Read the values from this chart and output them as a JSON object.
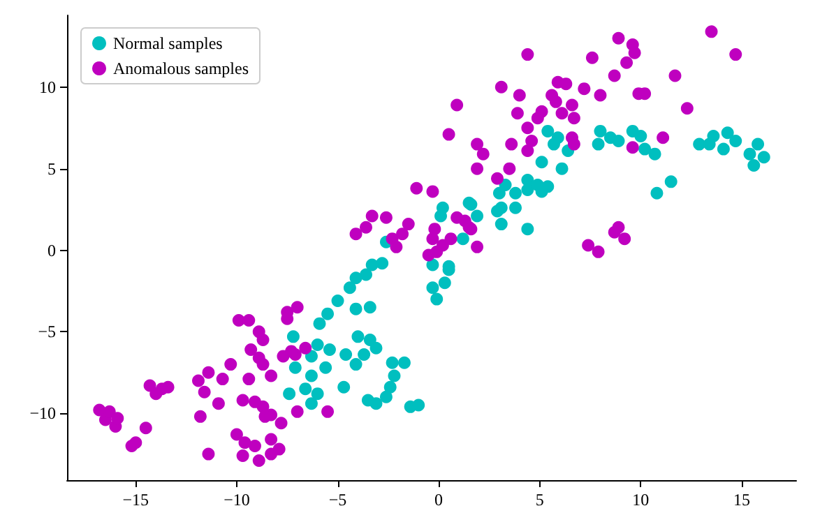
{
  "chart_data": {
    "type": "scatter",
    "legend": "top left",
    "marker": "circle",
    "grid": false,
    "xlim": [
      -18.4,
      17.7
    ],
    "ylim": [
      -14.1,
      14.4
    ],
    "xticks": [
      -15,
      -10,
      -5,
      0,
      5,
      10,
      15
    ],
    "yticks": [
      -10,
      -5,
      0,
      5,
      10
    ],
    "series": [
      {
        "name": "Normal samples",
        "color": "#00bfbf",
        "x": [
          4.4,
          0.2,
          0.1,
          1.5,
          1.9,
          1.2,
          2.9,
          3.1,
          3.8,
          4.4,
          -0.3,
          0.5,
          -0.3,
          -0.1,
          0.3,
          -2.6,
          -2.8,
          -3.3,
          -3.6,
          -4.1,
          -4.4,
          -5.0,
          -5.5,
          -5.9,
          -4.1,
          -3.4,
          -4.0,
          -3.4,
          -3.1,
          -3.7,
          -4.1,
          -4.6,
          -5.4,
          -6.0,
          -6.3,
          -5.6,
          -6.3,
          -6.6,
          -6.0,
          -4.7,
          -7.1,
          -7.2,
          -2.3,
          -1.7,
          -2.2,
          -2.4,
          -2.6,
          -3.5,
          -3.1,
          -1.4,
          -1.0,
          -6.3,
          -7.4,
          1.6,
          3.0,
          3.3,
          3.1,
          3.8,
          4.4,
          4.9,
          5.4,
          5.1,
          5.1,
          6.1,
          5.4,
          5.9,
          6.4,
          5.7,
          8.0,
          7.9,
          8.5,
          8.9,
          9.6,
          10.0,
          10.2,
          10.7,
          10.8,
          11.5,
          12.9,
          13.6,
          14.3,
          14.7,
          14.1,
          15.4,
          15.8,
          15.6,
          16.1,
          13.4,
          0.5
        ],
        "values": [
          1.3,
          2.6,
          2.1,
          2.9,
          2.1,
          0.7,
          2.4,
          1.6,
          3.5,
          3.7,
          -0.9,
          -1.2,
          -2.3,
          -3.0,
          -2.0,
          0.5,
          -0.8,
          -0.9,
          -1.5,
          -1.7,
          -2.3,
          -3.1,
          -3.9,
          -4.5,
          -3.6,
          -3.5,
          -5.3,
          -5.5,
          -6.0,
          -6.4,
          -7.0,
          -6.4,
          -6.1,
          -5.8,
          -6.5,
          -7.2,
          -7.7,
          -8.5,
          -8.8,
          -8.4,
          -7.2,
          -5.3,
          -6.9,
          -6.9,
          -7.7,
          -8.4,
          -9.0,
          -9.2,
          -9.4,
          -9.6,
          -9.5,
          -9.4,
          -8.8,
          2.8,
          3.5,
          4.0,
          2.6,
          2.6,
          4.3,
          4.0,
          3.9,
          3.6,
          5.4,
          5.0,
          7.3,
          6.9,
          6.1,
          6.5,
          7.3,
          6.5,
          6.9,
          6.7,
          7.3,
          7.0,
          6.2,
          5.9,
          3.5,
          4.2,
          6.5,
          7.0,
          7.2,
          6.7,
          6.2,
          5.9,
          6.5,
          5.2,
          5.7,
          6.5,
          -1.0
        ]
      },
      {
        "name": "Anomalous samples",
        "color": "#bf00bf",
        "x": [
          -16.8,
          -16.5,
          -16.0,
          -16.3,
          -15.9,
          -15.2,
          -15.0,
          -14.5,
          -14.3,
          -13.4,
          -14.0,
          -13.7,
          -11.9,
          -11.4,
          -10.7,
          -11.6,
          -11.8,
          -10.9,
          -11.4,
          -10.3,
          -9.4,
          -9.9,
          -9.4,
          -8.9,
          -8.7,
          -9.3,
          -8.9,
          -8.7,
          -7.5,
          -7.0,
          -7.5,
          -7.7,
          -7.1,
          -8.3,
          -9.7,
          -9.1,
          -8.7,
          -8.3,
          -7.8,
          -8.6,
          -10.0,
          -9.6,
          -9.1,
          -9.7,
          -8.9,
          -8.3,
          -7.9,
          -8.3,
          -7.0,
          -7.3,
          -6.6,
          -5.5,
          -4.1,
          -3.3,
          -2.6,
          -3.6,
          -2.3,
          -1.5,
          -1.8,
          -2.1,
          -1.1,
          -0.3,
          -0.5,
          -0.3,
          0.2,
          -0.1,
          0.6,
          -0.2,
          0.9,
          1.5,
          1.9,
          0.5,
          0.9,
          1.9,
          2.2,
          1.9,
          2.9,
          3.5,
          3.1,
          4.0,
          3.9,
          3.6,
          4.4,
          4.6,
          4.9,
          4.4,
          5.1,
          5.6,
          5.9,
          6.3,
          5.8,
          6.6,
          6.7,
          6.1,
          4.4,
          6.6,
          6.7,
          7.2,
          7.6,
          8.0,
          8.7,
          8.9,
          9.6,
          9.7,
          9.3,
          9.9,
          10.2,
          11.7,
          12.3,
          13.5,
          14.7,
          9.6,
          11.1,
          7.4,
          7.9,
          8.7,
          8.9,
          9.2,
          1.3,
          1.6
        ],
        "values": [
          -9.8,
          -10.4,
          -10.8,
          -9.9,
          -10.3,
          -12.0,
          -11.8,
          -10.9,
          -8.3,
          -8.4,
          -8.8,
          -8.5,
          -8.0,
          -7.5,
          -7.9,
          -8.7,
          -10.2,
          -9.4,
          -12.5,
          -7.0,
          -7.9,
          -4.3,
          -4.3,
          -5.0,
          -5.5,
          -6.1,
          -6.6,
          -7.0,
          -3.8,
          -3.5,
          -4.2,
          -6.5,
          -6.4,
          -7.7,
          -9.2,
          -9.3,
          -9.6,
          -10.1,
          -10.6,
          -10.2,
          -11.3,
          -11.8,
          -12.0,
          -12.6,
          -12.9,
          -12.5,
          -12.2,
          -11.6,
          -9.9,
          -6.2,
          -6.0,
          -9.9,
          1.0,
          2.1,
          2.0,
          1.4,
          0.7,
          1.6,
          1.0,
          0.2,
          3.8,
          3.6,
          -0.3,
          0.7,
          0.3,
          -0.1,
          0.7,
          1.3,
          2.0,
          1.4,
          0.2,
          7.1,
          8.9,
          6.5,
          5.9,
          5.0,
          4.4,
          5.0,
          10.0,
          9.5,
          8.4,
          6.5,
          6.1,
          6.7,
          8.1,
          7.5,
          8.5,
          9.5,
          10.3,
          10.2,
          9.1,
          8.9,
          8.1,
          8.4,
          12.0,
          6.9,
          6.5,
          9.9,
          11.8,
          9.5,
          10.7,
          13.0,
          12.6,
          12.1,
          11.5,
          9.6,
          9.6,
          10.7,
          8.7,
          13.4,
          12.0,
          6.3,
          6.9,
          0.3,
          -0.1,
          1.1,
          1.4,
          0.7,
          1.8,
          1.3
        ]
      }
    ]
  }
}
